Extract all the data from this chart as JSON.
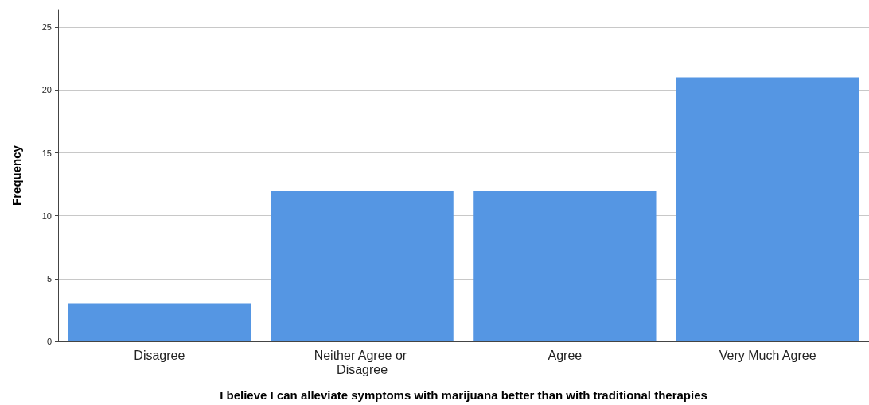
{
  "chart_data": {
    "type": "bar",
    "xlabel": "I believe I can alleviate symptoms with marijuana better than with traditional therapies",
    "ylabel": "Frequency",
    "categories": [
      "Disagree",
      "Neither Agree or Disagree",
      "Agree",
      "Very Much Agree"
    ],
    "values": [
      3,
      12,
      12,
      21
    ],
    "color": "#5596e3",
    "ylim": [
      0,
      26.4
    ],
    "yticks": [
      0,
      5,
      10,
      15,
      20,
      25
    ],
    "grid": "y"
  }
}
